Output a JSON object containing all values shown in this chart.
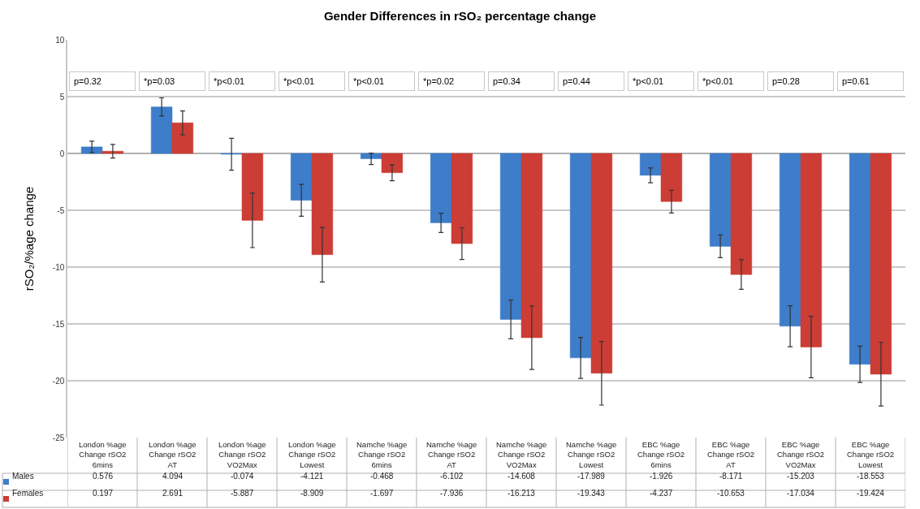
{
  "chart_data": {
    "type": "bar",
    "title": "Gender Differences in rSO₂ percentage change",
    "ylabel": "rSO₂/%age change",
    "categories": [
      "London %age Change rSO2 6mins",
      "London %age Change rSO2 AT",
      "London %age Change rSO2 VO2Max",
      "London %age Change rSO2 Lowest",
      "Namche %age Change rSO2 6mins",
      "Namche %age Change rSO2 AT",
      "Namche %age Change rSO2 VO2Max",
      "Namche %age Change rSO2 Lowest",
      "EBC %age Change rSO2 6mins",
      "EBC %age Change rSO2 AT",
      "EBC %age Change rSO2 VO2Max",
      "EBC %age Change rSO2 Lowest"
    ],
    "series": [
      {
        "name": "Males",
        "color": "#3d7dca",
        "values": [
          0.576,
          4.094,
          -0.074,
          -4.121,
          -0.468,
          -6.102,
          -14.608,
          -17.989,
          -1.926,
          -8.171,
          -15.203,
          -18.553
        ],
        "errors": [
          0.5,
          0.8,
          1.4,
          1.4,
          0.5,
          0.85,
          1.7,
          1.8,
          0.65,
          1.0,
          1.8,
          1.6
        ]
      },
      {
        "name": "Females",
        "color": "#cc3d35",
        "values": [
          0.197,
          2.691,
          -5.887,
          -8.909,
          -1.697,
          -7.936,
          -16.213,
          -19.343,
          -4.237,
          -10.653,
          -17.034,
          -19.424
        ],
        "errors": [
          0.6,
          1.05,
          2.4,
          2.4,
          0.7,
          1.4,
          2.8,
          2.8,
          1.0,
          1.3,
          2.7,
          2.8
        ]
      }
    ],
    "annotations": [
      "p=0.32",
      "*p=0.03",
      "*p<0.01",
      "*p<0.01",
      "*p<0.01",
      "*p=0.02",
      "p=0.34",
      "p=0.44",
      "*p<0.01",
      "*p<0.01",
      "p=0.28",
      "p=0.61"
    ],
    "ylim": [
      -25,
      10
    ],
    "yticks": [
      -25,
      -20,
      -15,
      -10,
      -5,
      0,
      5,
      10
    ],
    "grid": "y",
    "data_labels": true,
    "legend": "bottom left"
  }
}
